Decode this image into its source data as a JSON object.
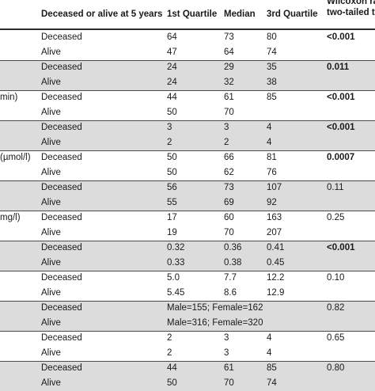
{
  "headers": {
    "status": "Deceased or alive at 5 years",
    "q1": "1st Quartile",
    "median": "Median",
    "q3": "3rd Quartile",
    "test_line1": "Wilcoxon ra",
    "test_line2": "two-tailed te"
  },
  "groups": [
    {
      "label": "",
      "grey": false,
      "p": "<0.001",
      "p_bold": true,
      "rows": [
        {
          "status": "Deceased",
          "q1": "64",
          "median": "73",
          "q3": "80"
        },
        {
          "status": "Alive",
          "q1": "47",
          "median": "64",
          "q3": "74"
        }
      ]
    },
    {
      "label": "",
      "grey": true,
      "p": "0.011",
      "p_bold": true,
      "rows": [
        {
          "status": "Deceased",
          "q1": "24",
          "median": "29",
          "q3": "35"
        },
        {
          "status": "Alive",
          "q1": "24",
          "median": "32",
          "q3": "38"
        }
      ]
    },
    {
      "label": "min)",
      "grey": false,
      "p": "<0.001",
      "p_bold": true,
      "rows": [
        {
          "status": "Deceased",
          "q1": "44",
          "median": "61",
          "q3": "85"
        },
        {
          "status": "Alive",
          "q1": "50",
          "median": "70",
          "q3": ""
        }
      ]
    },
    {
      "label": "",
      "grey": true,
      "p": "<0.001",
      "p_bold": true,
      "rows": [
        {
          "status": "Deceased",
          "q1": "3",
          "median": "3",
          "q3": "4"
        },
        {
          "status": "Alive",
          "q1": "2",
          "median": "2",
          "q3": "4"
        }
      ]
    },
    {
      "label": "(µmol/l)",
      "grey": false,
      "p": "0.0007",
      "p_bold": true,
      "rows": [
        {
          "status": "Deceased",
          "q1": "50",
          "median": "66",
          "q3": "81"
        },
        {
          "status": "Alive",
          "q1": "50",
          "median": "62",
          "q3": "76"
        }
      ]
    },
    {
      "label": "",
      "grey": true,
      "p": "0.11",
      "p_bold": false,
      "rows": [
        {
          "status": "Deceased",
          "q1": "56",
          "median": "73",
          "q3": "107"
        },
        {
          "status": "Alive",
          "q1": "55",
          "median": "69",
          "q3": "92"
        }
      ]
    },
    {
      "label": "mg/l)",
      "grey": false,
      "p": "0.25",
      "p_bold": false,
      "rows": [
        {
          "status": "Deceased",
          "q1": "17",
          "median": "60",
          "q3": "163"
        },
        {
          "status": "Alive",
          "q1": "19",
          "median": "70",
          "q3": "207"
        }
      ]
    },
    {
      "label": "",
      "grey": true,
      "p": "<0.001",
      "p_bold": true,
      "rows": [
        {
          "status": "Deceased",
          "q1": "0.32",
          "median": "0.36",
          "q3": "0.41"
        },
        {
          "status": "Alive",
          "q1": "0.33",
          "median": "0.38",
          "q3": "0.45"
        }
      ]
    },
    {
      "label": "",
      "grey": false,
      "p": "0.10",
      "p_bold": false,
      "rows": [
        {
          "status": "Deceased",
          "q1": "5.0",
          "median": "7.7",
          "q3": "12.2"
        },
        {
          "status": "Alive",
          "q1": "5.45",
          "median": "8.6",
          "q3": "12.9"
        }
      ]
    },
    {
      "label": "",
      "grey": true,
      "p": "0.82",
      "p_bold": false,
      "rows": [
        {
          "status": "Deceased",
          "span": "Male=155; Female=162"
        },
        {
          "status": "Alive",
          "span": "Male=316; Female=320"
        }
      ]
    },
    {
      "label": "",
      "grey": false,
      "p": "0.65",
      "p_bold": false,
      "rows": [
        {
          "status": "Deceased",
          "q1": "2",
          "median": "3",
          "q3": "4"
        },
        {
          "status": "Alive",
          "q1": "2",
          "median": "3",
          "q3": "4"
        }
      ]
    },
    {
      "label": "",
      "grey": true,
      "p": "0.80",
      "p_bold": false,
      "rows": [
        {
          "status": "Deceased",
          "q1": "44",
          "median": "61",
          "q3": "85"
        },
        {
          "status": "Alive",
          "q1": "50",
          "median": "70",
          "q3": "74"
        }
      ]
    }
  ]
}
